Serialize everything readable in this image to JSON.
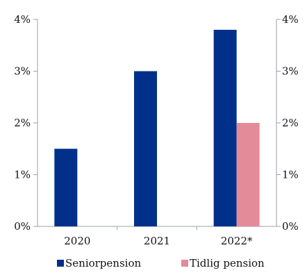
{
  "chart_data": {
    "type": "bar",
    "title": "",
    "xlabel": "",
    "ylabel": "",
    "categories": [
      "2020",
      "2021",
      "2022*"
    ],
    "series": [
      {
        "name": "Seniorpension",
        "values": [
          1.5,
          3.0,
          3.8
        ],
        "color": "#00308a"
      },
      {
        "name": "Tidlig pension",
        "values": [
          null,
          null,
          2.0
        ],
        "color": "#e38b98"
      }
    ],
    "ylim": [
      0,
      4
    ],
    "y_ticks": [
      "0%",
      "1%",
      "2%",
      "3%",
      "4%"
    ],
    "y_tick_values": [
      0,
      1,
      2,
      3,
      4
    ],
    "secondary_y_axis": true,
    "grid": false,
    "legend_position": "bottom"
  }
}
